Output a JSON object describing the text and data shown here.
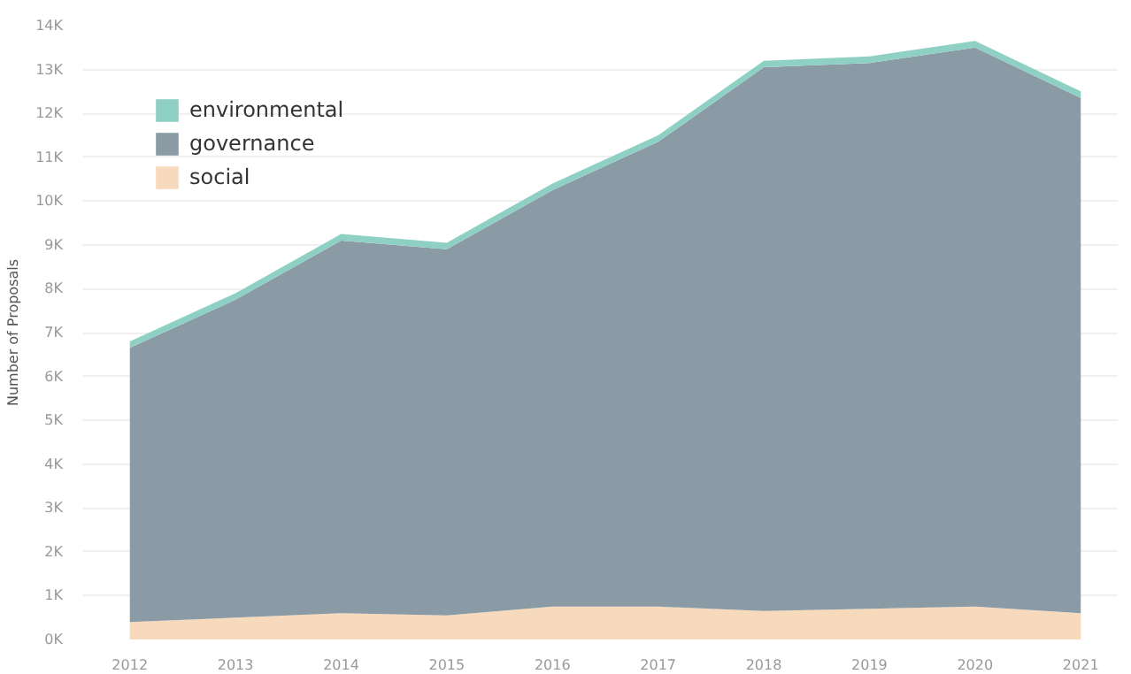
{
  "chart_data": {
    "type": "area",
    "stacked": true,
    "ylabel": "Number of Proposals",
    "x": [
      2012,
      2013,
      2014,
      2015,
      2016,
      2017,
      2018,
      2019,
      2020,
      2021
    ],
    "xlim": [
      2011.55,
      2021.35
    ],
    "xticks": [
      2012,
      2013,
      2014,
      2015,
      2016,
      2017,
      2018,
      2019,
      2020,
      2021
    ],
    "ylim": [
      0,
      14000
    ],
    "yticks": [
      {
        "value": 0,
        "label": "0K"
      },
      {
        "value": 1000,
        "label": "1K"
      },
      {
        "value": 2000,
        "label": "2K"
      },
      {
        "value": 3000,
        "label": "3K"
      },
      {
        "value": 4000,
        "label": "4K"
      },
      {
        "value": 5000,
        "label": "5K"
      },
      {
        "value": 6000,
        "label": "6K"
      },
      {
        "value": 7000,
        "label": "7K"
      },
      {
        "value": 8000,
        "label": "8K"
      },
      {
        "value": 9000,
        "label": "9K"
      },
      {
        "value": 10000,
        "label": "10K"
      },
      {
        "value": 11000,
        "label": "11K"
      },
      {
        "value": 12000,
        "label": "12K"
      },
      {
        "value": 13000,
        "label": "13K"
      },
      {
        "value": 14000,
        "label": "14K"
      }
    ],
    "series": [
      {
        "name": "social",
        "color": "#f7d9bb",
        "values": [
          400,
          500,
          600,
          550,
          750,
          750,
          650,
          700,
          750,
          600
        ]
      },
      {
        "name": "governance",
        "color": "#8a9ba5",
        "values": [
          6250,
          7250,
          8500,
          8350,
          9500,
          10600,
          12400,
          12450,
          12750,
          11750
        ]
      },
      {
        "name": "environmental",
        "color": "#8fd0c5",
        "values": [
          150,
          150,
          150,
          150,
          150,
          150,
          150,
          150,
          150,
          150
        ]
      }
    ],
    "grid": "y",
    "legend": "top left"
  }
}
